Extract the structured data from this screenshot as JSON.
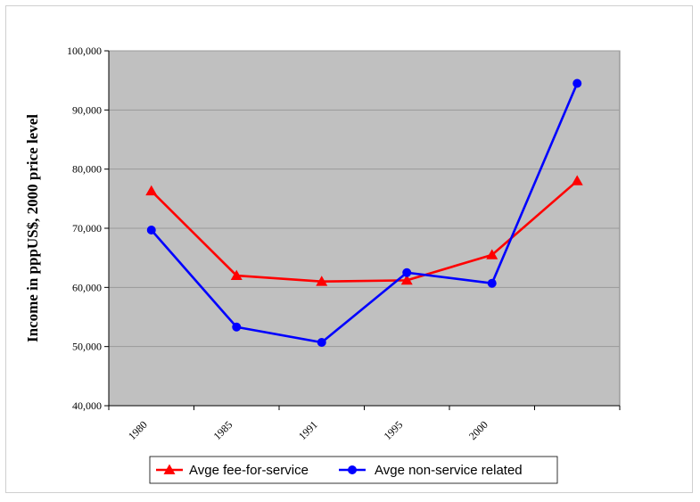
{
  "chart_data": {
    "type": "line",
    "ylabel": "Income in pppUS$, 2000 price level",
    "xlabel": "",
    "categories": [
      "1980",
      "1985",
      "1991",
      "1995",
      "2000",
      ""
    ],
    "ylim": [
      40000,
      100000
    ],
    "yticks": [
      40000,
      50000,
      60000,
      70000,
      80000,
      90000,
      100000
    ],
    "ytick_labels": [
      "40,000",
      "50,000",
      "60,000",
      "70,000",
      "80,000",
      "90,000",
      "100,000"
    ],
    "grid": true,
    "plot_background": "#c0c0c0",
    "legend_position": "bottom",
    "series": [
      {
        "name": "Avge  fee-for-service",
        "color": "#ff0000",
        "marker": "triangle",
        "values": [
          76300,
          62000,
          61000,
          61200,
          65500,
          78000
        ]
      },
      {
        "name": "Avge non-service related",
        "color": "#0000ff",
        "marker": "circle",
        "values": [
          69700,
          53300,
          50700,
          62500,
          60700,
          94500
        ]
      }
    ]
  }
}
